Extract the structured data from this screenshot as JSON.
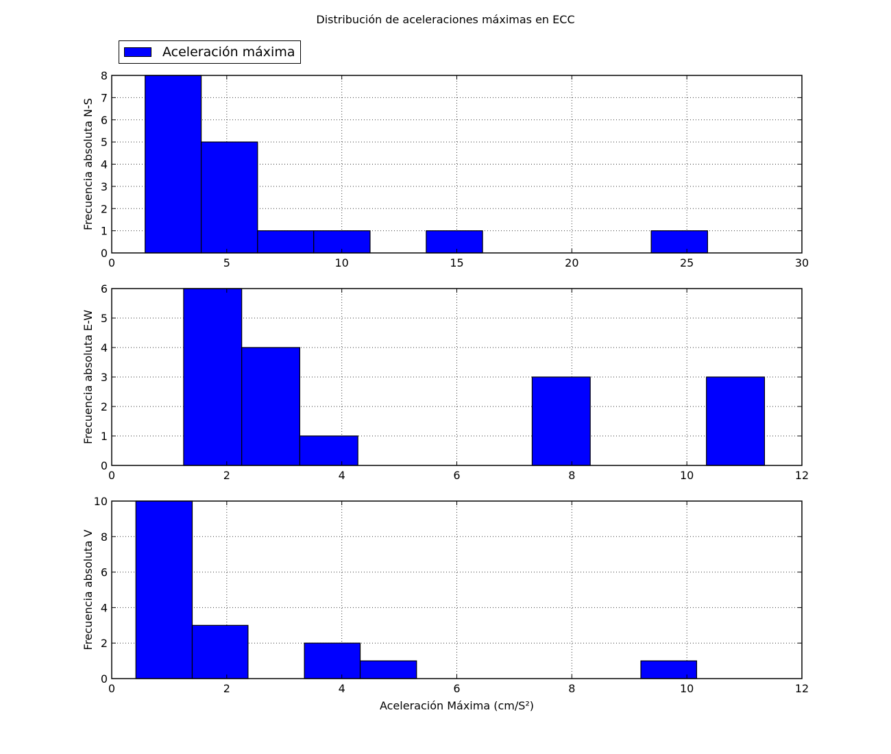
{
  "title": "Distribución de aceleraciones máximas en ECC",
  "legend": {
    "label": "Aceleración máxima",
    "color": "#0000ff"
  },
  "chart_data": [
    {
      "type": "bar",
      "name": "N-S",
      "title": "Distribución de aceleraciones máximas en ECC",
      "xlabel": "",
      "ylabel": "Frecuencia absoluta N-S",
      "xlim": [
        0,
        30
      ],
      "ylim": [
        0,
        8
      ],
      "xticks": [
        0,
        5,
        10,
        15,
        20,
        25,
        30
      ],
      "yticks": [
        0,
        1,
        2,
        3,
        4,
        5,
        6,
        7,
        8
      ],
      "grid": true,
      "bin_edges": [
        1.45,
        3.89,
        6.34,
        8.78,
        11.23,
        13.67,
        16.12,
        18.56,
        21.01,
        23.45,
        25.9
      ],
      "values": [
        8,
        5,
        1,
        1,
        0,
        1,
        0,
        0,
        0,
        1
      ],
      "color": "#0000ff"
    },
    {
      "type": "bar",
      "name": "E-W",
      "xlabel": "",
      "ylabel": "Frecuencia absoluta E-W",
      "xlim": [
        0,
        12
      ],
      "ylim": [
        0,
        6
      ],
      "xticks": [
        0,
        2,
        4,
        6,
        8,
        10,
        12
      ],
      "yticks": [
        0,
        1,
        2,
        3,
        4,
        5,
        6
      ],
      "grid": true,
      "bin_edges": [
        1.25,
        2.26,
        3.27,
        4.28,
        5.29,
        6.3,
        7.31,
        8.32,
        9.33,
        10.34,
        11.35
      ],
      "values": [
        6,
        4,
        1,
        0,
        0,
        0,
        3,
        0,
        0,
        3
      ],
      "color": "#0000ff"
    },
    {
      "type": "bar",
      "name": "V",
      "xlabel": "Aceleración Máxima (cm/S²)",
      "ylabel": "Frecuencia absoluta V",
      "xlim": [
        0,
        12
      ],
      "ylim": [
        0,
        10
      ],
      "xticks": [
        0,
        2,
        4,
        6,
        8,
        10,
        12
      ],
      "yticks": [
        0,
        2,
        4,
        6,
        8,
        10
      ],
      "grid": true,
      "bin_edges": [
        0.42,
        1.4,
        2.37,
        3.35,
        4.32,
        5.3,
        6.27,
        7.25,
        8.22,
        9.2,
        10.17
      ],
      "values": [
        10,
        3,
        0,
        2,
        1,
        0,
        0,
        0,
        0,
        1
      ],
      "color": "#0000ff"
    }
  ]
}
